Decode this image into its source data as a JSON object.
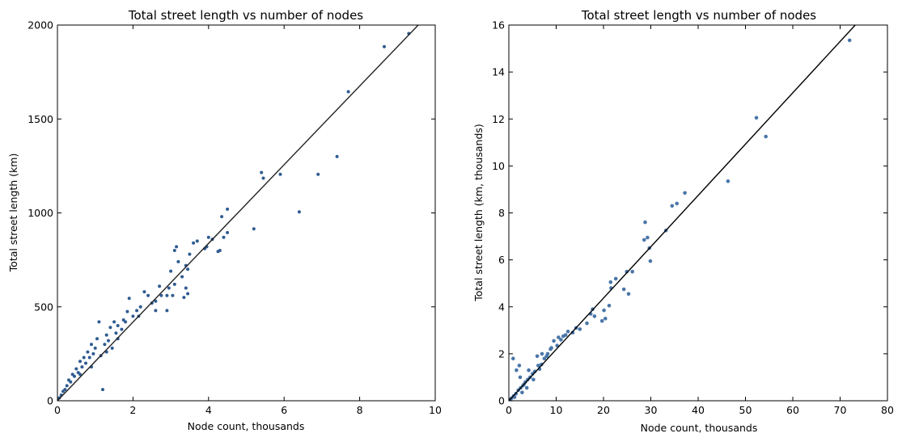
{
  "chart_data": [
    {
      "type": "scatter",
      "title": "Total street length vs number of nodes",
      "xlabel": "Node count, thousands",
      "ylabel": "Total street length (km)",
      "xlim": [
        0,
        10
      ],
      "ylim": [
        0,
        2000
      ],
      "xticks": [
        "0",
        "2",
        "4",
        "6",
        "8",
        "10"
      ],
      "yticks": [
        "0",
        "500",
        "1000",
        "1500",
        "2000"
      ],
      "grid": false,
      "point_color": "#2f5b91",
      "fit_line": {
        "x": [
          0,
          9.55
        ],
        "y": [
          0,
          2000
        ],
        "color": "#222222"
      },
      "points": [
        [
          9.3,
          1955
        ],
        [
          8.65,
          1885
        ],
        [
          7.7,
          1645
        ],
        [
          7.4,
          1300
        ],
        [
          6.9,
          1205
        ],
        [
          6.4,
          1005
        ],
        [
          5.9,
          1205
        ],
        [
          5.4,
          1215
        ],
        [
          5.45,
          1185
        ],
        [
          5.2,
          915
        ],
        [
          4.5,
          1020
        ],
        [
          4.5,
          895
        ],
        [
          4.4,
          870
        ],
        [
          4.35,
          980
        ],
        [
          4.3,
          800
        ],
        [
          4.25,
          795
        ],
        [
          4.1,
          860
        ],
        [
          4.0,
          870
        ],
        [
          3.95,
          820
        ],
        [
          3.9,
          810
        ],
        [
          3.7,
          850
        ],
        [
          3.6,
          840
        ],
        [
          3.5,
          780
        ],
        [
          3.45,
          700
        ],
        [
          3.4,
          720
        ],
        [
          3.3,
          660
        ],
        [
          3.2,
          740
        ],
        [
          3.15,
          820
        ],
        [
          3.1,
          800
        ],
        [
          3.4,
          600
        ],
        [
          3.45,
          570
        ],
        [
          3.35,
          550
        ],
        [
          3.1,
          620
        ],
        [
          3.0,
          690
        ],
        [
          2.95,
          600
        ],
        [
          3.05,
          560
        ],
        [
          2.9,
          560
        ],
        [
          2.9,
          480
        ],
        [
          2.75,
          560
        ],
        [
          2.6,
          530
        ],
        [
          2.6,
          480
        ],
        [
          2.4,
          560
        ],
        [
          2.3,
          580
        ],
        [
          2.2,
          500
        ],
        [
          2.15,
          450
        ],
        [
          2.1,
          480
        ],
        [
          1.9,
          545
        ],
        [
          1.85,
          475
        ],
        [
          1.75,
          430
        ],
        [
          1.7,
          380
        ],
        [
          1.6,
          400
        ],
        [
          1.55,
          360
        ],
        [
          1.5,
          420
        ],
        [
          1.4,
          390
        ],
        [
          1.35,
          320
        ],
        [
          1.3,
          350
        ],
        [
          1.25,
          300
        ],
        [
          1.1,
          420
        ],
        [
          1.05,
          330
        ],
        [
          1.2,
          60
        ],
        [
          1.0,
          280
        ],
        [
          0.95,
          250
        ],
        [
          0.9,
          300
        ],
        [
          0.85,
          230
        ],
        [
          0.8,
          260
        ],
        [
          0.75,
          200
        ],
        [
          0.7,
          230
        ],
        [
          0.65,
          180
        ],
        [
          0.6,
          210
        ],
        [
          0.55,
          150
        ],
        [
          0.5,
          170
        ],
        [
          0.45,
          130
        ],
        [
          0.4,
          140
        ],
        [
          0.35,
          100
        ],
        [
          0.3,
          110
        ],
        [
          0.25,
          80
        ],
        [
          0.2,
          60
        ],
        [
          0.15,
          50
        ],
        [
          0.1,
          30
        ],
        [
          0.05,
          15
        ],
        [
          1.6,
          330
        ],
        [
          1.8,
          420
        ],
        [
          2.0,
          450
        ],
        [
          2.5,
          520
        ],
        [
          2.7,
          610
        ],
        [
          1.45,
          280
        ],
        [
          1.15,
          240
        ],
        [
          0.6,
          140
        ],
        [
          0.9,
          180
        ],
        [
          1.3,
          260
        ]
      ]
    },
    {
      "type": "scatter",
      "title": "Total street length vs number of nodes",
      "xlabel": "Node count, thousands",
      "ylabel": "Total street length (km, thousands)",
      "xlim": [
        0,
        80
      ],
      "ylim": [
        0,
        16
      ],
      "xticks": [
        "0",
        "10",
        "20",
        "30",
        "40",
        "50",
        "60",
        "70",
        "80"
      ],
      "yticks": [
        "0",
        "2",
        "4",
        "6",
        "8",
        "10",
        "12",
        "14",
        "16"
      ],
      "grid": false,
      "point_color": "#4a76a8",
      "fit_line": {
        "x": [
          0,
          73.2
        ],
        "y": [
          0,
          16
        ],
        "color": "#000000"
      },
      "points": [
        [
          72,
          15.35
        ],
        [
          52.3,
          12.05
        ],
        [
          54.3,
          11.25
        ],
        [
          46.3,
          9.35
        ],
        [
          37.2,
          8.85
        ],
        [
          35.5,
          8.4
        ],
        [
          34.5,
          8.3
        ],
        [
          33.2,
          7.25
        ],
        [
          28.8,
          7.6
        ],
        [
          29.3,
          6.95
        ],
        [
          28.6,
          6.85
        ],
        [
          29.7,
          6.5
        ],
        [
          29.9,
          5.95
        ],
        [
          26.1,
          5.5
        ],
        [
          24.9,
          5.5
        ],
        [
          25.3,
          4.55
        ],
        [
          24.3,
          4.75
        ],
        [
          22.6,
          5.2
        ],
        [
          21.5,
          5.05
        ],
        [
          21.6,
          4.8
        ],
        [
          21.2,
          4.05
        ],
        [
          20.1,
          3.85
        ],
        [
          20.4,
          3.5
        ],
        [
          19.7,
          3.4
        ],
        [
          17.7,
          3.9
        ],
        [
          17.3,
          3.7
        ],
        [
          18.1,
          3.6
        ],
        [
          16.5,
          3.3
        ],
        [
          14.2,
          3.1
        ],
        [
          13.5,
          2.9
        ],
        [
          12.5,
          2.95
        ],
        [
          11.5,
          2.75
        ],
        [
          10.5,
          2.7
        ],
        [
          9.5,
          2.55
        ],
        [
          8.8,
          2.2
        ],
        [
          8.2,
          2.0
        ],
        [
          7.5,
          1.8
        ],
        [
          6.9,
          1.55
        ],
        [
          6.2,
          1.5
        ],
        [
          5.5,
          1.25
        ],
        [
          5.0,
          1.15
        ],
        [
          4.5,
          1.0
        ],
        [
          4.0,
          0.9
        ],
        [
          3.5,
          0.8
        ],
        [
          3.0,
          0.65
        ],
        [
          2.5,
          0.55
        ],
        [
          2.0,
          0.45
        ],
        [
          1.5,
          0.3
        ],
        [
          1.0,
          0.2
        ],
        [
          0.5,
          0.1
        ],
        [
          0.9,
          1.8
        ],
        [
          1.6,
          1.3
        ],
        [
          2.2,
          1.5
        ],
        [
          2.4,
          1.0
        ],
        [
          3.2,
          0.7
        ],
        [
          4.2,
          1.3
        ],
        [
          6.0,
          1.9
        ],
        [
          7.0,
          2.0
        ],
        [
          9.0,
          2.25
        ],
        [
          10.2,
          2.35
        ],
        [
          11.0,
          2.6
        ],
        [
          12.0,
          2.8
        ],
        [
          15.0,
          3.05
        ],
        [
          3.8,
          0.55
        ],
        [
          5.2,
          0.9
        ],
        [
          2.8,
          0.35
        ],
        [
          1.2,
          0.15
        ],
        [
          0.4,
          0.05
        ],
        [
          6.5,
          1.35
        ],
        [
          8.0,
          1.9
        ]
      ]
    }
  ]
}
